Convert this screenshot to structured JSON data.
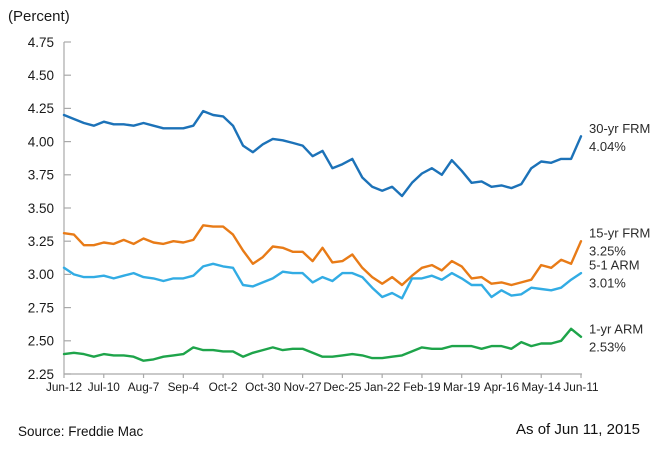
{
  "page": {
    "unit_label": "(Percent)",
    "source_text": "Source: Freddie Mac",
    "as_of_text": "As of Jun 11, 2015"
  },
  "chart_data": {
    "type": "line",
    "title": "(Percent)",
    "x_interval": "weekly",
    "x_tick_labels": [
      "Jun-12",
      "Jul-10",
      "Aug-7",
      "Sep-4",
      "Oct-2",
      "Oct-30",
      "Nov-27",
      "Dec-25",
      "Jan-22",
      "Feb-19",
      "Mar-19",
      "Apr-16",
      "May-14",
      "Jun-11"
    ],
    "x_tick_weeks": [
      0,
      4,
      8,
      12,
      16,
      20,
      24,
      28,
      32,
      36,
      40,
      44,
      48,
      52
    ],
    "y_tick_labels": [
      "4.75",
      "4.50",
      "4.25",
      "4.00",
      "3.75",
      "3.50",
      "3.25",
      "3.00",
      "2.75",
      "2.50",
      "2.25"
    ],
    "ylim": [
      2.25,
      4.75
    ],
    "grid": false,
    "legend_position": "right-end-labels",
    "axis_color": "#a9a9a9",
    "tick_text_color": "#1a1a1a",
    "label_text_color": "#2b2b2b",
    "series": [
      {
        "name": "30-yr FRM",
        "end_label": "4.04%",
        "color": "#1c72b8",
        "values": [
          4.2,
          4.17,
          4.14,
          4.12,
          4.15,
          4.13,
          4.13,
          4.12,
          4.14,
          4.12,
          4.1,
          4.1,
          4.1,
          4.12,
          4.23,
          4.2,
          4.19,
          4.12,
          3.97,
          3.92,
          3.98,
          4.02,
          4.01,
          3.99,
          3.97,
          3.89,
          3.93,
          3.8,
          3.83,
          3.87,
          3.73,
          3.66,
          3.63,
          3.66,
          3.59,
          3.69,
          3.76,
          3.8,
          3.75,
          3.86,
          3.78,
          3.69,
          3.7,
          3.66,
          3.67,
          3.65,
          3.68,
          3.8,
          3.85,
          3.84,
          3.87,
          3.87,
          4.04
        ]
      },
      {
        "name": "15-yr FRM",
        "end_label": "3.25%",
        "color": "#e87b17",
        "values": [
          3.31,
          3.3,
          3.22,
          3.22,
          3.24,
          3.23,
          3.26,
          3.23,
          3.27,
          3.24,
          3.23,
          3.25,
          3.24,
          3.26,
          3.37,
          3.36,
          3.36,
          3.3,
          3.18,
          3.08,
          3.13,
          3.21,
          3.2,
          3.17,
          3.17,
          3.1,
          3.2,
          3.09,
          3.1,
          3.15,
          3.05,
          2.98,
          2.93,
          2.98,
          2.92,
          2.99,
          3.05,
          3.07,
          3.03,
          3.1,
          3.06,
          2.97,
          2.98,
          2.93,
          2.94,
          2.92,
          2.94,
          2.96,
          3.07,
          3.05,
          3.11,
          3.08,
          3.25
        ]
      },
      {
        "name": "5-1 ARM",
        "end_label": "3.01%",
        "color": "#32ace4",
        "values": [
          3.05,
          3.0,
          2.98,
          2.98,
          2.99,
          2.97,
          2.99,
          3.01,
          2.98,
          2.97,
          2.95,
          2.97,
          2.97,
          2.99,
          3.06,
          3.08,
          3.06,
          3.05,
          2.92,
          2.91,
          2.94,
          2.97,
          3.02,
          3.01,
          3.01,
          2.94,
          2.98,
          2.95,
          3.01,
          3.01,
          2.98,
          2.9,
          2.83,
          2.86,
          2.82,
          2.97,
          2.97,
          2.99,
          2.96,
          3.01,
          2.97,
          2.92,
          2.92,
          2.83,
          2.88,
          2.84,
          2.85,
          2.9,
          2.89,
          2.88,
          2.9,
          2.96,
          3.01
        ]
      },
      {
        "name": "1-yr ARM",
        "end_label": "2.53%",
        "color": "#1ea44a",
        "values": [
          2.4,
          2.41,
          2.4,
          2.38,
          2.4,
          2.39,
          2.39,
          2.38,
          2.35,
          2.36,
          2.38,
          2.39,
          2.4,
          2.45,
          2.43,
          2.43,
          2.42,
          2.42,
          2.38,
          2.41,
          2.43,
          2.45,
          2.43,
          2.44,
          2.44,
          2.41,
          2.38,
          2.38,
          2.39,
          2.4,
          2.39,
          2.37,
          2.37,
          2.38,
          2.39,
          2.42,
          2.45,
          2.44,
          2.44,
          2.46,
          2.46,
          2.46,
          2.44,
          2.46,
          2.46,
          2.44,
          2.49,
          2.46,
          2.48,
          2.48,
          2.5,
          2.59,
          2.53
        ]
      }
    ]
  }
}
